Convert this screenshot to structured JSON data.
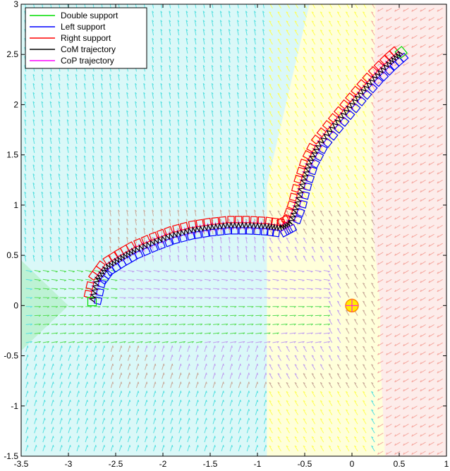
{
  "chart_data": {
    "type": "line",
    "title": "",
    "xlabel": "",
    "ylabel": "",
    "xlim": [
      -3.5,
      1
    ],
    "ylim": [
      -1.5,
      3
    ],
    "xticks": [
      -3.5,
      -3,
      -2.5,
      -2,
      -1.5,
      -1,
      -0.5,
      0,
      0.5,
      1
    ],
    "yticks": [
      -1.5,
      -1,
      -0.5,
      0,
      0.5,
      1,
      1.5,
      2,
      2.5,
      3
    ],
    "xtick_labels": [
      "-3.5",
      "-3",
      "-2.5",
      "-2",
      "-1.5",
      "-1",
      "-0.5",
      "0",
      "0.5",
      "1"
    ],
    "ytick_labels": [
      "-1.5",
      "-1",
      "-0.5",
      "0",
      "0.5",
      "1",
      "1.5",
      "2",
      "2.5",
      "3"
    ],
    "grid": false,
    "legend_position": "top-left",
    "series": [
      {
        "name": "Double support",
        "color": "#00dd00"
      },
      {
        "name": "Left support",
        "color": "#0000ff"
      },
      {
        "name": "Right support",
        "color": "#ff0000"
      },
      {
        "name": "CoM trajectory",
        "color": "#000000"
      },
      {
        "name": "CoP trajectory",
        "color": "#ff00ff"
      }
    ],
    "path_points": {
      "x": [
        -2.75,
        -2.7,
        -2.6,
        -2.45,
        -2.3,
        -2.1,
        -1.9,
        -1.7,
        -1.5,
        -1.3,
        -1.1,
        -0.9,
        -0.75,
        -0.65,
        -0.58,
        -0.52,
        -0.45,
        -0.35,
        -0.2,
        -0.05,
        0.1,
        0.25,
        0.4,
        0.52
      ],
      "y": [
        0.04,
        0.25,
        0.38,
        0.47,
        0.55,
        0.63,
        0.7,
        0.75,
        0.78,
        0.8,
        0.8,
        0.79,
        0.77,
        0.82,
        1.0,
        1.22,
        1.42,
        1.6,
        1.78,
        1.95,
        2.12,
        2.28,
        2.42,
        2.52
      ]
    },
    "target_point": {
      "x": 0.0,
      "y": 0.0
    },
    "field_colors": {
      "cyan": "#55e0e0",
      "green": "#55dd55",
      "yellow": "#ffff55",
      "pink": "#f5a8a0",
      "violet": "#c0a0f0",
      "tan": "#c8a898"
    }
  }
}
